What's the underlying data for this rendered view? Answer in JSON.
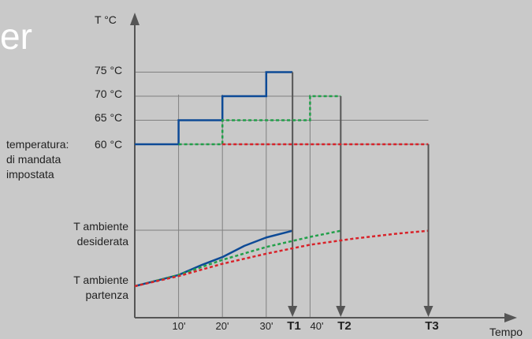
{
  "title_fragment": "er",
  "chart_data": {
    "type": "line",
    "ylabel": "T °C",
    "xlabel": "Tempo",
    "x_ticks": [
      "10'",
      "20'",
      "30'",
      "T1",
      "40'",
      "T2",
      "T3"
    ],
    "y_labels": [
      {
        "text": "75 °C",
        "value": 75
      },
      {
        "text": "70 °C",
        "value": 70
      },
      {
        "text": "65 °C",
        "value": 65
      },
      {
        "text": "60 °C",
        "value": 60
      }
    ],
    "side_labels": {
      "mandata_1": "temperatura:",
      "mandata_2": "di mandata",
      "mandata_3": "impostata",
      "desiderata_1": "T ambiente",
      "desiderata_2": "desiderata",
      "partenza_1": "T ambiente",
      "partenza_2": "partenza"
    },
    "series": [
      {
        "color": "#0d4a96",
        "style": "solid",
        "supply_steps": [
          [
            0,
            60
          ],
          [
            10,
            60
          ],
          [
            10,
            65
          ],
          [
            20,
            65
          ],
          [
            20,
            70
          ],
          [
            30,
            70
          ],
          [
            30,
            75
          ],
          [
            36,
            75
          ]
        ],
        "room_curve": [
          [
            0,
            0
          ],
          [
            5,
            0.1
          ],
          [
            10,
            0.2
          ],
          [
            15,
            0.37
          ],
          [
            20,
            0.52
          ],
          [
            25,
            0.72
          ],
          [
            30,
            0.87
          ],
          [
            36,
            0.99
          ]
        ],
        "end_x": 36,
        "end_label": "T1"
      },
      {
        "color": "#22a04a",
        "style": "dotted",
        "supply_steps": [
          [
            10,
            60
          ],
          [
            20,
            60
          ],
          [
            20,
            65
          ],
          [
            40,
            65
          ],
          [
            40,
            70
          ],
          [
            47,
            70
          ]
        ],
        "room_curve": [
          [
            0,
            0
          ],
          [
            10,
            0.2
          ],
          [
            20,
            0.47
          ],
          [
            30,
            0.7
          ],
          [
            40,
            0.88
          ],
          [
            47,
            0.99
          ]
        ],
        "end_x": 47,
        "end_label": "T2"
      },
      {
        "color": "#d8232a",
        "style": "dotted",
        "supply_steps": [
          [
            20,
            60
          ],
          [
            67,
            60
          ]
        ],
        "room_curve": [
          [
            0,
            0
          ],
          [
            10,
            0.18
          ],
          [
            20,
            0.4
          ],
          [
            30,
            0.58
          ],
          [
            40,
            0.74
          ],
          [
            50,
            0.85
          ],
          [
            60,
            0.94
          ],
          [
            67,
            0.99
          ]
        ],
        "end_x": 67,
        "end_label": "T3"
      }
    ],
    "room_levels": {
      "partenza": 0,
      "desiderata": 1
    }
  },
  "colors": {
    "background": "#c9c9c9",
    "axis": "#555555",
    "grid": "#808080"
  }
}
